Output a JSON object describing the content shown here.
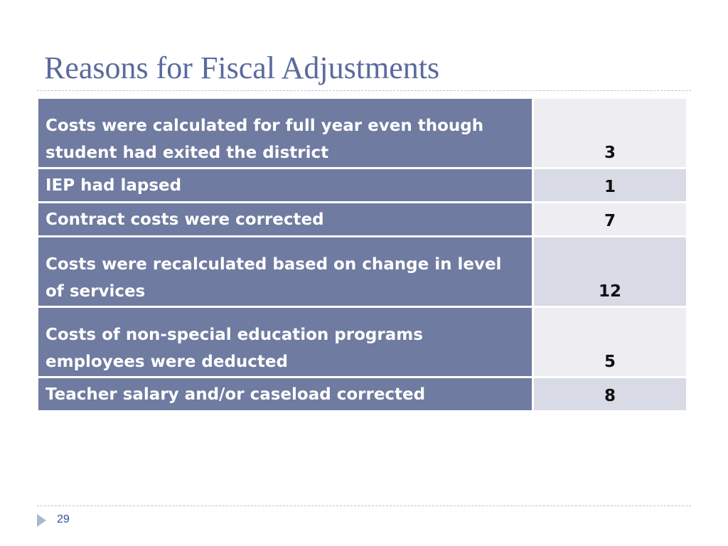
{
  "slide": {
    "title": "Reasons for Fiscal Adjustments",
    "page_number": "29"
  },
  "table": {
    "rows": [
      {
        "reason": "Costs were calculated for full year even though student had exited the district",
        "count": "3"
      },
      {
        "reason": "IEP had lapsed",
        "count": "1"
      },
      {
        "reason": "Contract costs were corrected",
        "count": "7"
      },
      {
        "reason": "Costs were recalculated based on change in level of services",
        "count": "12"
      },
      {
        "reason": "Costs of non-special education programs employees were deducted",
        "count": "5"
      },
      {
        "reason": "Teacher salary and/or caseload corrected",
        "count": "8"
      }
    ]
  },
  "colors": {
    "title": "#5a6a9e",
    "label_cell": "#6f7ba0",
    "value_cell_light": "#eeeef2",
    "value_cell_dark": "#d8dae6",
    "footer_arrow": "#a9b8d2"
  },
  "icons": {
    "footer": "triangle-right-icon"
  }
}
